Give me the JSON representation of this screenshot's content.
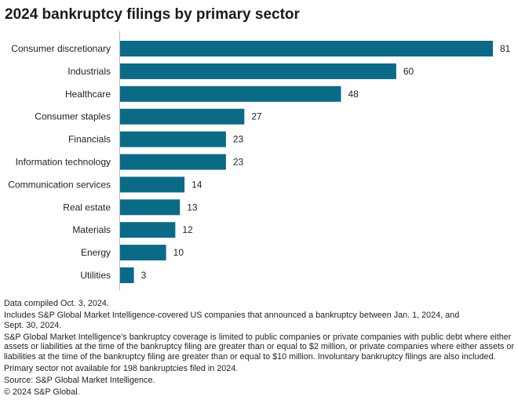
{
  "chart_data": {
    "type": "bar",
    "orientation": "horizontal",
    "title": "2024 bankruptcy filings by primary sector",
    "categories": [
      "Consumer discretionary",
      "Industrials",
      "Healthcare",
      "Consumer staples",
      "Financials",
      "Information technology",
      "Communication services",
      "Real estate",
      "Materials",
      "Energy",
      "Utilities"
    ],
    "values": [
      81,
      60,
      48,
      27,
      23,
      23,
      14,
      13,
      12,
      10,
      3
    ],
    "xlabel": "",
    "ylabel": "",
    "xlim": [
      0,
      81
    ],
    "grid": false,
    "data_labels": true,
    "bar_color": "#0b6a86"
  },
  "notes": [
    "Data compiled Oct. 3, 2024.",
    "Includes S&P Global Market Intelligence-covered US companies that announced a bankruptcy between Jan. 1, 2024, and Sept. 30, 2024.",
    "S&P Global Market Intelligence's bankruptcy coverage is limited to public companies or private companies with public debt where either assets or liabilities at the time of the bankruptcy filing are greater than or equal to $2 million, or private companies where either assets or liabilities at the time of the bankruptcy filing are greater than or equal to $10 million. Involuntary bankruptcy filings are also included.",
    "Primary sector not available for 198 bankruptcies filed in 2024.",
    "Source: S&P Global Market Intelligence.",
    "© 2024 S&P Global."
  ]
}
